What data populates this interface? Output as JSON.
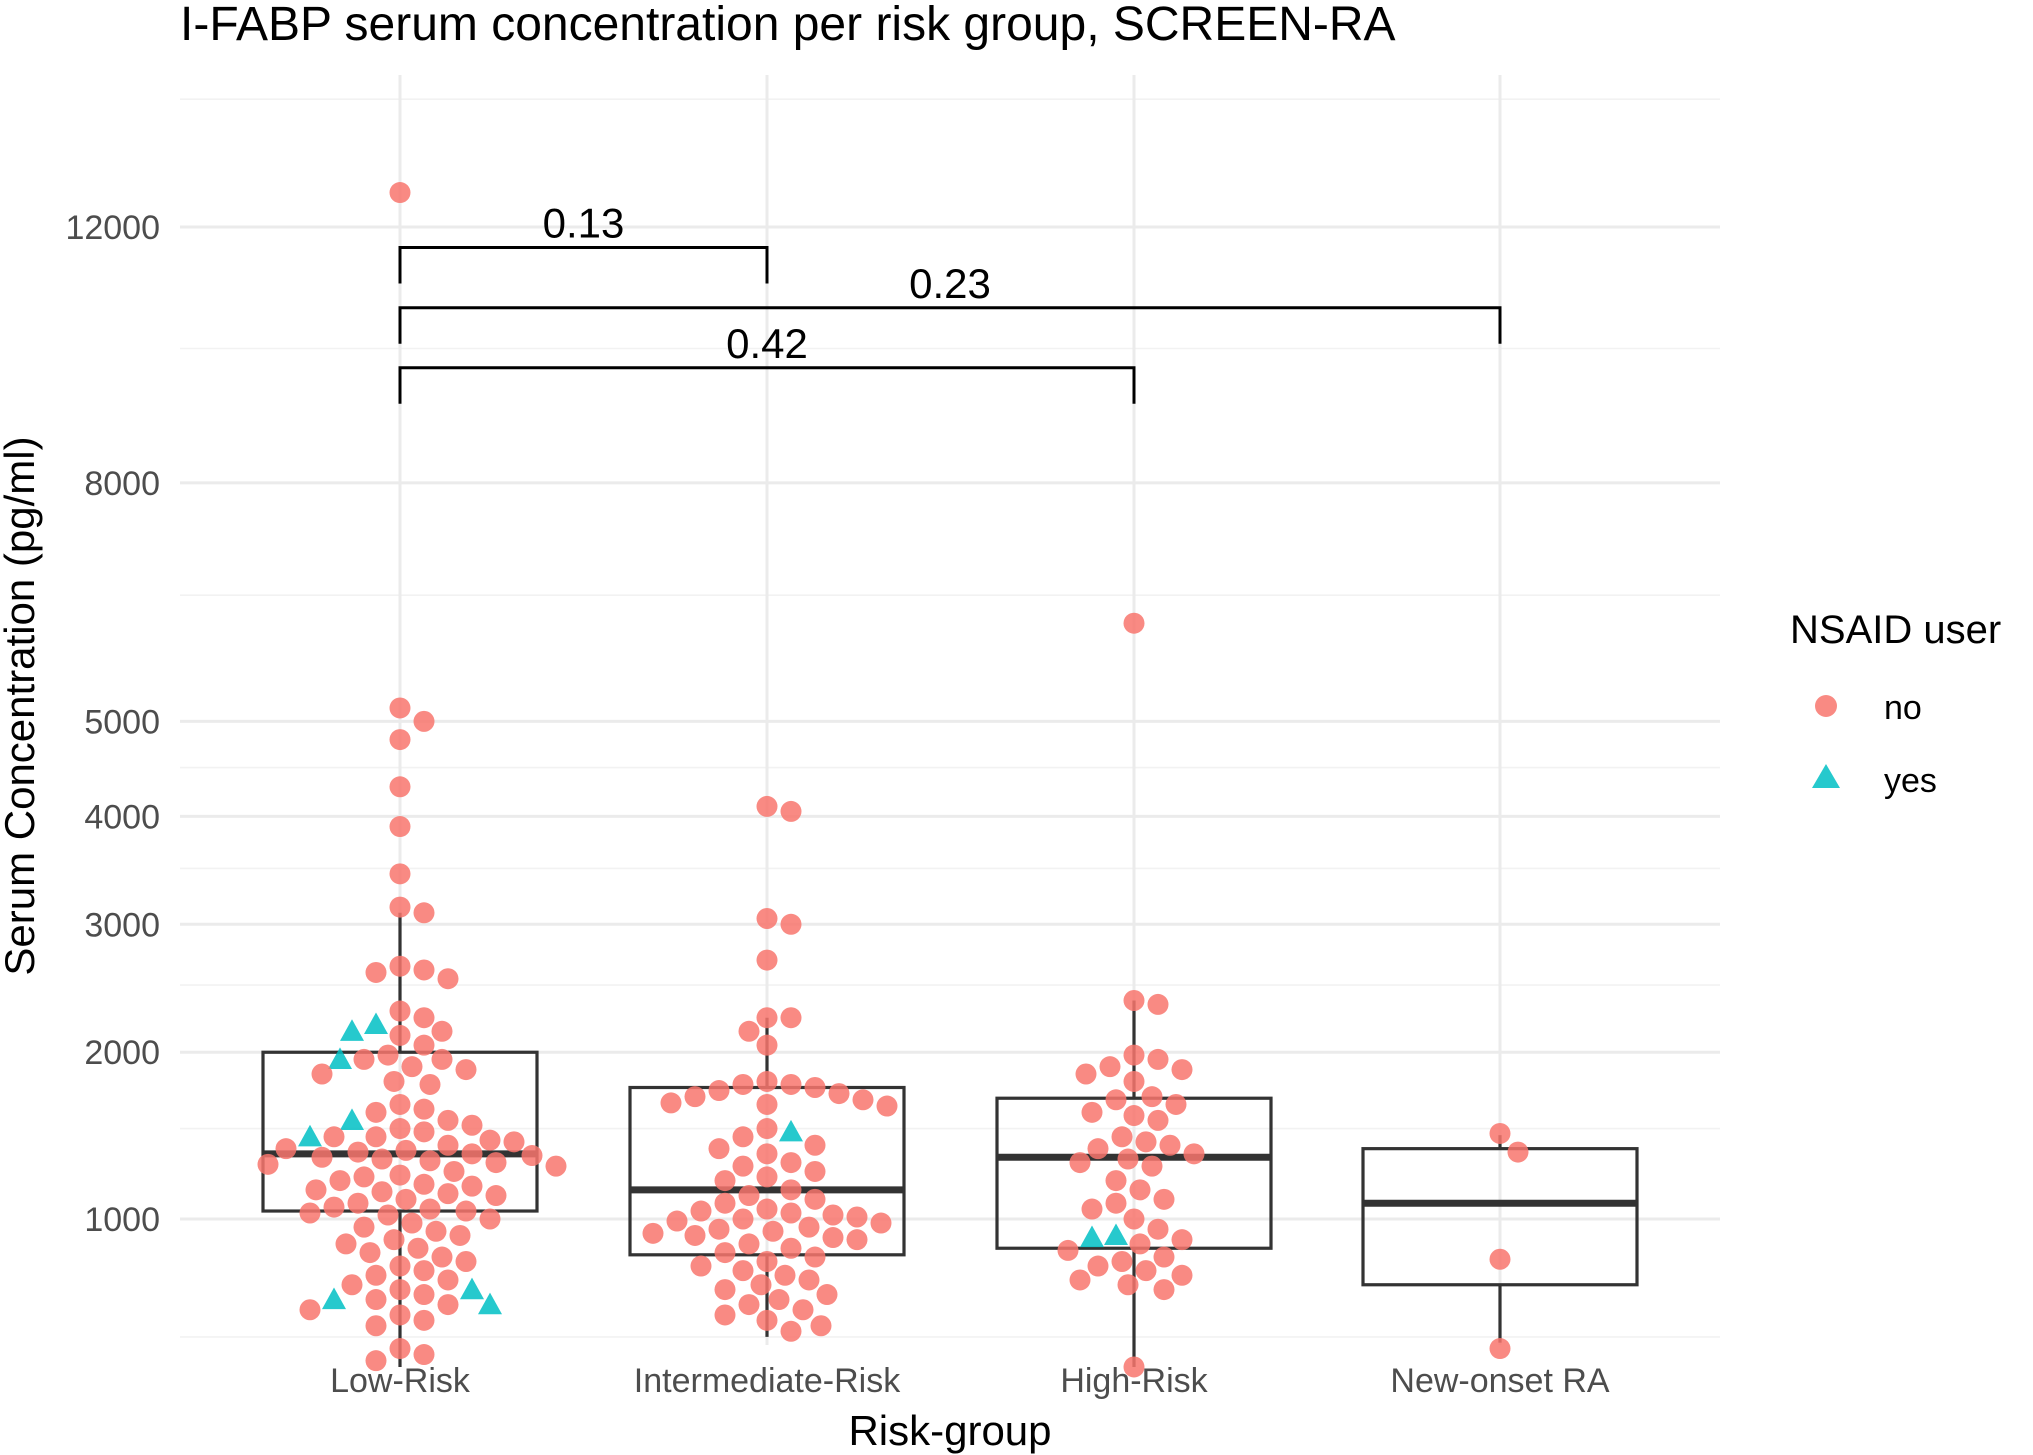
{
  "chart_data": {
    "type": "box-beeswarm",
    "title": "I-FABP serum concentration per risk group, SCREEN-RA",
    "xlabel": "Risk-group",
    "ylabel": "Serum Concentration (pg/ml)",
    "y_scale": "sqrt",
    "ylim": [
      400,
      13200
    ],
    "y_ticks": [
      1000,
      2000,
      3000,
      4000,
      5000,
      8000,
      12000
    ],
    "y_tick_labels": [
      "1000",
      "2000",
      "3000",
      "4000",
      "5000",
      "8000",
      "12000"
    ],
    "grid": true,
    "categories": [
      "Low-Risk",
      "Intermediate-Risk",
      "High-Risk",
      "New-onset RA"
    ],
    "legend": {
      "title": "NSAID user",
      "position": "right",
      "entries": [
        {
          "label": "no",
          "shape": "circle",
          "color": "#F8766D"
        },
        {
          "label": "yes",
          "shape": "triangle",
          "color": "#00BFC4"
        }
      ]
    },
    "boxes": [
      {
        "category": "Low-Risk",
        "q1": 1040,
        "median": 1350,
        "q3": 2000,
        "whisker_low": 400,
        "whisker_high": 3100
      },
      {
        "category": "Intermediate-Risk",
        "q1": 830,
        "median": 1150,
        "q3": 1760,
        "whisker_low": 500,
        "whisker_high": 2250
      },
      {
        "category": "High-Risk",
        "q1": 860,
        "median": 1330,
        "q3": 1690,
        "whisker_low": 400,
        "whisker_high": 2380
      },
      {
        "category": "New-onset RA",
        "q1": 700,
        "median": 1080,
        "q3": 1380,
        "whisker_low": 480,
        "whisker_high": 1460
      }
    ],
    "points": {
      "Low-Risk": {
        "no": [
          12600,
          5150,
          5000,
          4800,
          4300,
          3900,
          3450,
          3150,
          3100,
          2650,
          2620,
          2600,
          2550,
          2300,
          2250,
          2150,
          2120,
          2050,
          1980,
          1950,
          1950,
          1900,
          1880,
          1850,
          1800,
          1780,
          1650,
          1620,
          1600,
          1550,
          1520,
          1500,
          1480,
          1450,
          1450,
          1430,
          1420,
          1400,
          1380,
          1370,
          1360,
          1350,
          1340,
          1330,
          1320,
          1310,
          1300,
          1290,
          1280,
          1250,
          1230,
          1220,
          1200,
          1180,
          1170,
          1150,
          1140,
          1130,
          1120,
          1100,
          1080,
          1060,
          1050,
          1040,
          1030,
          1020,
          1000,
          980,
          960,
          940,
          920,
          900,
          880,
          860,
          840,
          820,
          800,
          780,
          760,
          740,
          720,
          700,
          680,
          660,
          640,
          620,
          600,
          580,
          560,
          540,
          460,
          440,
          420
        ],
        "yes": [
          2150,
          2200,
          1950,
          1550,
          1450,
          680,
          640,
          620
        ]
      },
      "Intermediate-Risk": {
        "no": [
          4100,
          4050,
          3050,
          3000,
          2700,
          2250,
          2250,
          2150,
          2050,
          1800,
          1780,
          1780,
          1760,
          1740,
          1720,
          1700,
          1680,
          1660,
          1650,
          1640,
          1500,
          1450,
          1400,
          1380,
          1350,
          1300,
          1280,
          1250,
          1220,
          1200,
          1150,
          1120,
          1100,
          1080,
          1050,
          1040,
          1030,
          1020,
          1010,
          1000,
          990,
          980,
          960,
          950,
          940,
          930,
          920,
          910,
          900,
          880,
          860,
          840,
          820,
          800,
          780,
          760,
          740,
          720,
          700,
          680,
          660,
          640,
          620,
          600,
          580,
          560,
          540,
          520
        ],
        "yes": [
          1480
        ]
      },
      "High-Risk": {
        "no": [
          6150,
          2380,
          2350,
          1980,
          1950,
          1900,
          1880,
          1850,
          1800,
          1700,
          1680,
          1650,
          1600,
          1580,
          1550,
          1450,
          1420,
          1400,
          1380,
          1350,
          1320,
          1300,
          1280,
          1200,
          1150,
          1100,
          1080,
          1050,
          1000,
          950,
          900,
          880,
          850,
          820,
          800,
          780,
          760,
          740,
          720,
          700,
          680,
          400
        ],
        "yes": [
          910,
          920
        ]
      },
      "New-onset RA": {
        "no": [
          1470,
          1360,
          810,
          460
        ],
        "yes": []
      }
    },
    "comparisons": [
      {
        "from": "Low-Risk",
        "to": "Intermediate-Risk",
        "label": "0.13",
        "y": 11650
      },
      {
        "from": "Low-Risk",
        "to": "New-onset RA",
        "label": "0.23",
        "y": 10650
      },
      {
        "from": "Low-Risk",
        "to": "High-Risk",
        "label": "0.42",
        "y": 9700
      }
    ]
  }
}
